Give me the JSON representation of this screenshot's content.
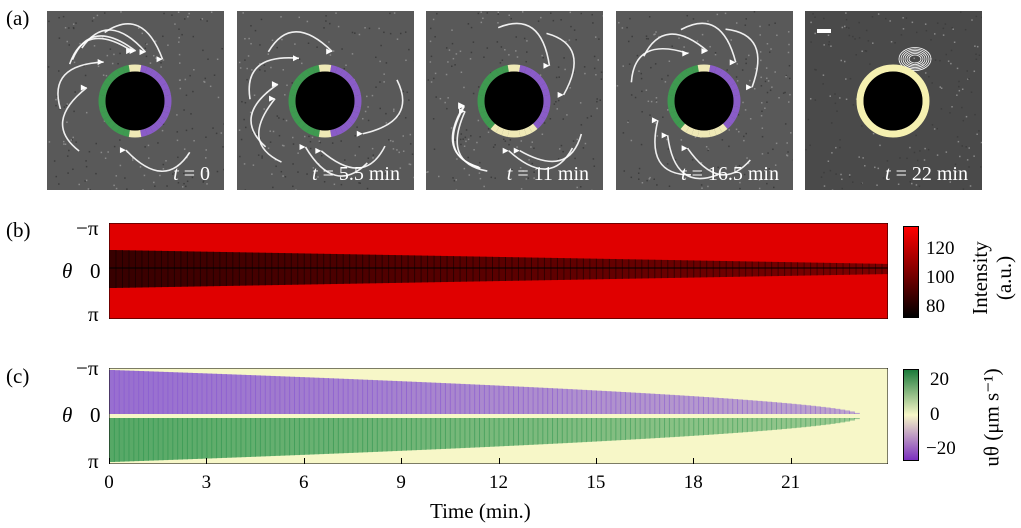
{
  "panel_labels": {
    "a": "(a)",
    "b": "(b)",
    "c": "(c)"
  },
  "snapshots": [
    {
      "time_var": "t",
      "time_text": " = 0",
      "scale_bar": false
    },
    {
      "time_var": "t",
      "time_text": " = 5.5 min",
      "scale_bar": false
    },
    {
      "time_var": "t",
      "time_text": " = 11 min",
      "scale_bar": false
    },
    {
      "time_var": "t",
      "time_text": " = 16.5 min",
      "scale_bar": false
    },
    {
      "time_var": "t",
      "time_text": " = 22 min",
      "scale_bar": true
    }
  ],
  "axes": {
    "theta_label": "θ",
    "theta_ticks": [
      "−π",
      "0",
      "π"
    ],
    "x_label": "Time (min.)",
    "x_ticks": [
      "0",
      "3",
      "6",
      "9",
      "12",
      "15",
      "18",
      "21"
    ]
  },
  "colorbars": {
    "b": {
      "label_line1": "Intensity",
      "label_line2": "(a.u.)",
      "ticks": [
        "120",
        "100",
        "80"
      ],
      "colors": [
        "#ff0000",
        "#000000"
      ]
    },
    "c": {
      "label": "uθ (μm s⁻¹)",
      "ticks": [
        "20",
        "0",
        "−20"
      ],
      "colors": [
        "#1b7a3a",
        "#f7f7c8",
        "#7b2fbf"
      ]
    }
  },
  "chart_data": [
    {
      "type": "heatmap",
      "panel": "b",
      "xlabel": "",
      "ylabel": "θ",
      "xlim": [
        0,
        24
      ],
      "ylim": [
        "−π",
        "π"
      ],
      "colorbar_label": "Intensity (a.u.)",
      "color_range": [
        80,
        130
      ],
      "dark_band_center_theta": [
        -0.5,
        0.0
      ],
      "description_values": {
        "band_intensity": 82,
        "background_intensity": 125
      }
    },
    {
      "type": "heatmap",
      "panel": "c",
      "xlabel": "Time (min.)",
      "ylabel": "θ",
      "xlim": [
        0,
        24
      ],
      "ylim": [
        "−π",
        "π"
      ],
      "colorbar_label": "uθ (μm s⁻¹)",
      "color_range": [
        -25,
        25
      ],
      "flow_decay_time_min": 23,
      "upper_half_velocity": -20,
      "lower_half_velocity": 20
    }
  ]
}
